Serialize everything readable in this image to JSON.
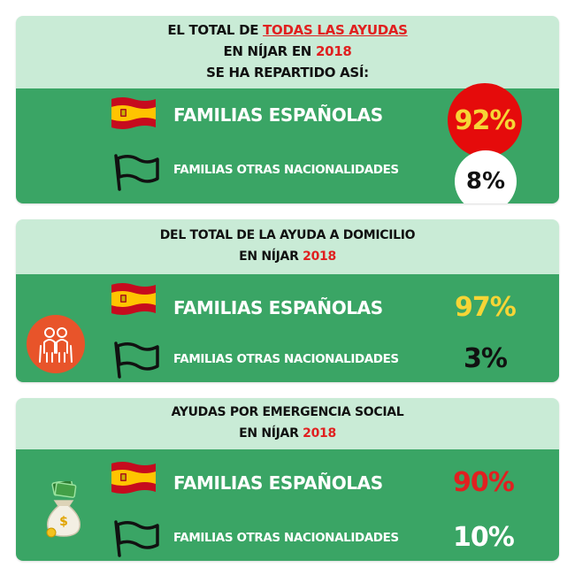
{
  "colors": {
    "header_bg": "#c9ebd6",
    "body_bg": "#3aa565",
    "accent_red": "#e02020",
    "accent_yellow": "#f6d536",
    "text_dark": "#111111",
    "text_white": "#ffffff"
  },
  "section1": {
    "title_prefix": "EL TOTAL DE",
    "title_highlight": "TODAS LAS AYUDAS",
    "title_line2_prefix": "EN NÍJAR EN",
    "title_year": "2018",
    "title_line3": "SE HA REPARTIDO ASÍ:",
    "row1_label": "FAMILIAS ESPAÑOLAS",
    "row1_value": "92%",
    "row2_label": "FAMILIAS OTRAS NACIONALIDADES",
    "row2_value": "8%"
  },
  "section2": {
    "title_line1": "DEL TOTAL DE LA AYUDA A DOMICILIO",
    "title_line2_prefix": "EN NÍJAR",
    "title_year": "2018",
    "icon": "elderly-couple-icon",
    "row1_label": "FAMILIAS ESPAÑOLAS",
    "row1_value": "97%",
    "row2_label": "FAMILIAS OTRAS NACIONALIDADES",
    "row2_value": "3%"
  },
  "section3": {
    "title_line1": "AYUDAS POR EMERGENCIA SOCIAL",
    "title_line2_prefix": "EN NÍJAR",
    "title_year": "2018",
    "icon": "money-bag-icon",
    "row1_label": "FAMILIAS ESPAÑOLAS",
    "row1_value": "90%",
    "row2_label": "FAMILIAS OTRAS NACIONALIDADES",
    "row2_value": "10%"
  }
}
